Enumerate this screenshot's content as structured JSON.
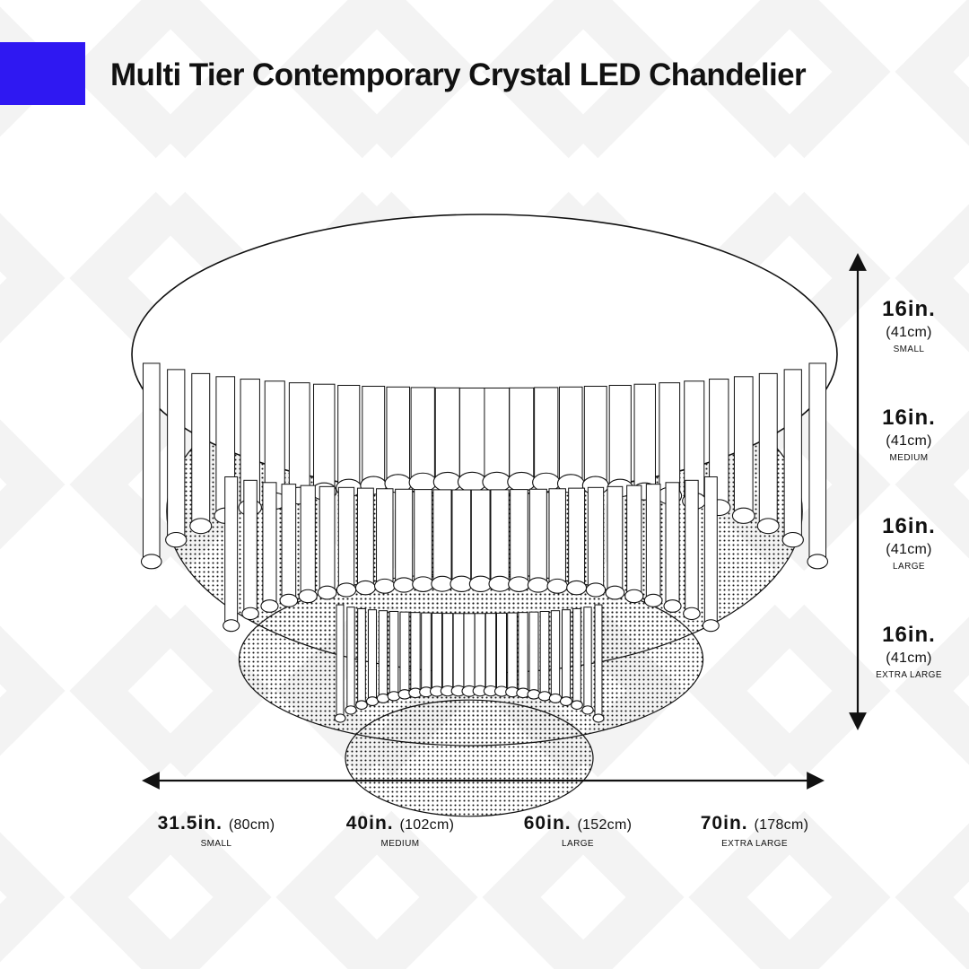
{
  "title": "Multi Tier Contemporary Crystal LED Chandelier",
  "colors": {
    "accent": "#2f18f2",
    "line": "#111111",
    "pattern": "#f3f3f3",
    "background": "#ffffff"
  },
  "diameter_options": [
    {
      "value": "31.5in.",
      "metric": "(80cm)",
      "size": "SMALL"
    },
    {
      "value": "40in.",
      "metric": "(102cm)",
      "size": "MEDIUM"
    },
    {
      "value": "60in.",
      "metric": "(152cm)",
      "size": "LARGE"
    },
    {
      "value": "70in.",
      "metric": "(178cm)",
      "size": "EXTRA LARGE"
    }
  ],
  "height_options": [
    {
      "value": "16in.",
      "metric": "(41cm)",
      "size": "SMALL"
    },
    {
      "value": "16in.",
      "metric": "(41cm)",
      "size": "MEDIUM"
    },
    {
      "value": "16in.",
      "metric": "(41cm)",
      "size": "LARGE"
    },
    {
      "value": "16in.",
      "metric": "(41cm)",
      "size": "EXTRA LARGE"
    }
  ]
}
